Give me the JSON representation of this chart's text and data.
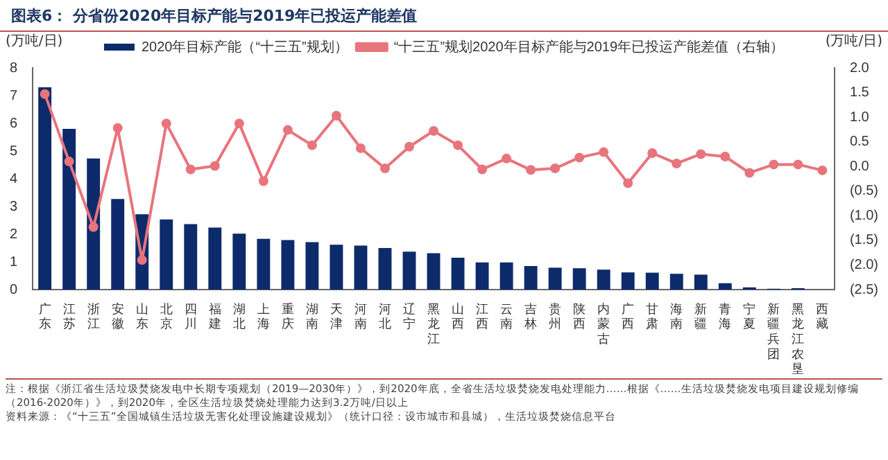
{
  "chart_data": {
    "type": "bar",
    "title": "图表6：  分省份2020年目标产能与2019年已投运产能差值",
    "ylabel": "(万吨/日)",
    "y2label": "(万吨/日)",
    "categories": [
      "广东",
      "江苏",
      "浙江",
      "安徽",
      "山东",
      "北京",
      "四川",
      "福建",
      "湖北",
      "上海",
      "重庆",
      "湖南",
      "天津",
      "河南",
      "河北",
      "辽宁",
      "黑龙江",
      "山西",
      "江西",
      "云南",
      "吉林",
      "贵州",
      "陕西",
      "内蒙古",
      "广西",
      "甘肃",
      "海南",
      "新疆",
      "青海",
      "宁夏",
      "新疆兵团",
      "黑龙江农垦",
      "西藏"
    ],
    "series": [
      {
        "name": "2020年目标产能（“十三五”规划）",
        "color": "#0d2a6b",
        "values": [
          7.3,
          5.8,
          4.73,
          3.27,
          2.72,
          2.53,
          2.36,
          2.24,
          2.02,
          1.83,
          1.79,
          1.71,
          1.62,
          1.59,
          1.5,
          1.37,
          1.31,
          1.15,
          0.98,
          0.98,
          0.85,
          0.79,
          0.77,
          0.72,
          0.62,
          0.61,
          0.57,
          0.54,
          0.23,
          0.08,
          0.03,
          0.05,
          0
        ]
      },
      {
        "name": "“十三五”规划2020年目标产能与2019年已投运产能差值（右轴）",
        "type": "line",
        "axis": "y2",
        "color": "#e8747c",
        "values": [
          1.47,
          0.1,
          -1.23,
          0.78,
          -1.9,
          0.87,
          -0.06,
          0.01,
          0.87,
          -0.3,
          0.74,
          0.43,
          1.03,
          0.37,
          -0.04,
          0.4,
          0.72,
          0.43,
          -0.06,
          0.16,
          -0.07,
          -0.04,
          0.18,
          0.29,
          -0.34,
          0.27,
          0.06,
          0.25,
          0.2,
          -0.13,
          0.04,
          0.04,
          -0.08
        ]
      }
    ],
    "ylim": [
      0,
      8
    ],
    "yticks": [
      0,
      1,
      2,
      3,
      4,
      5,
      6,
      7,
      8
    ],
    "y2lim": [
      -2.5,
      2
    ],
    "y2ticks": [
      {
        "value": -2.5,
        "label": "(2.5)"
      },
      {
        "value": -2,
        "label": "(2.0)"
      },
      {
        "value": -1.5,
        "label": "(1.5)"
      },
      {
        "value": -1,
        "label": "(1.0)"
      },
      {
        "value": -0.5,
        "label": "(0.5)"
      },
      {
        "value": 0,
        "label": "0.0"
      },
      {
        "value": 0.5,
        "label": "0.5"
      },
      {
        "value": 1,
        "label": "1.0"
      },
      {
        "value": 1.5,
        "label": "1.5"
      },
      {
        "value": 2,
        "label": "2.0"
      }
    ],
    "grid": false,
    "legend": "top",
    "marker": "circle",
    "line_style": "solid",
    "annotations": [
      "注：根据《浙江省生活垃圾焚烧发电中长期专项规划（2019—2030年）》，到2020年底，全省生活垃圾焚烧发电处理能力……根据《……生活垃圾焚烧发电项目建设规划修编（2016-2020年）》，到2020年，全区生活垃圾焚烧处理能力达到3.2万吨/日以上",
      "资料来源：《“十三五”全国城镇生活垃圾无害化处理设施建设规划》（统计口径：设市城市和县城），生活垃圾焚烧信息平台"
    ]
  }
}
